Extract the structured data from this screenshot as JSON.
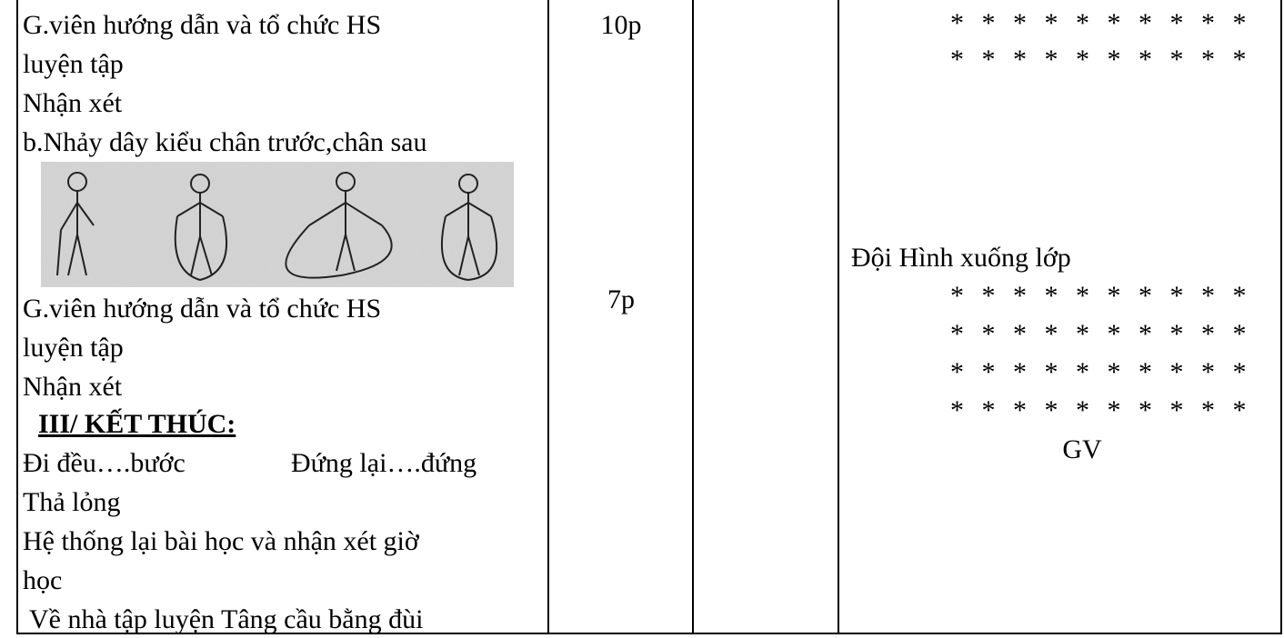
{
  "lesson_table": {
    "column1": {
      "lines_top": [
        "G.viên hướng dẫn và tổ chức HS",
        "luyện tập",
        "Nhận xét",
        "b.Nhảy dây kiểu chân trước,chân sau"
      ],
      "lines_mid": [
        "G.viên hướng dẫn và tổ chức HS",
        "luyện tập",
        "Nhận xét"
      ],
      "heading": "III/ KẾT THÚC:",
      "walk_left": "Đi đều….bước",
      "walk_right": "Đứng lại….đứng",
      "lines_end": [
        "Thả lỏng",
        "Hệ thống lại bài học và nhận xét giờ",
        "học",
        " Về nhà tập luyện Tâng cầu bằng đùi"
      ]
    },
    "time": [
      "10p",
      "7p"
    ],
    "formation": {
      "rows_top": [
        "* * * * * * * * * *",
        "* * * * * * * * * *"
      ],
      "label": "Đội Hình xuống lớp",
      "rows_bottom": [
        "* * * * * * * * * *",
        "* * * * * * * * * *",
        "* * * * * * * * * *",
        "* * * * * * * * * *"
      ],
      "teacher": "GV"
    }
  }
}
